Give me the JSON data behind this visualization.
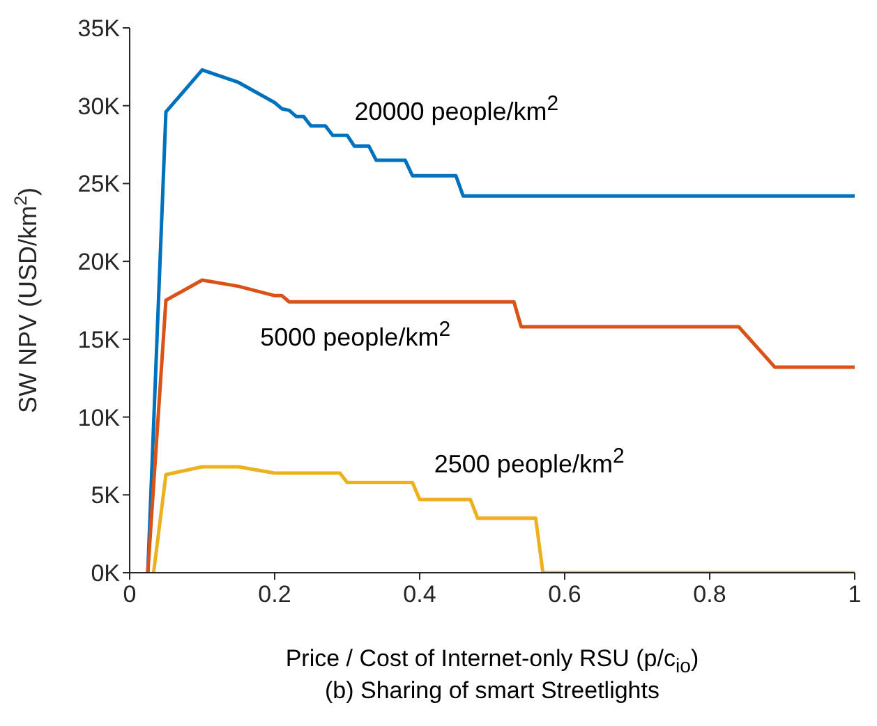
{
  "chart_data": {
    "type": "line",
    "xlabel": "Price / Cost of Internet-only RSU (p/c$_{io}$)",
    "ylabel": "SW NPV (USD/km$^{2}$)",
    "annotations": [
      "(b) Sharing of smart Streetlights"
    ],
    "series": [
      {
        "name": "20000 people/km$^{2}$",
        "color": "#0072bd",
        "x": [
          0.025,
          0.05,
          0.1,
          0.15,
          0.2,
          0.21,
          0.22,
          0.23,
          0.24,
          0.25,
          0.27,
          0.28,
          0.3,
          0.31,
          0.33,
          0.34,
          0.38,
          0.39,
          0.45,
          0.46,
          1
        ],
        "values": [
          0,
          29600,
          32300,
          31500,
          30200,
          29800,
          29700,
          29300,
          29300,
          28700,
          28700,
          28100,
          28100,
          27400,
          27400,
          26500,
          26500,
          25500,
          25500,
          24200,
          24200
        ]
      },
      {
        "name": "5000 people/km$^{2}$",
        "color": "#d95319",
        "x": [
          0.025,
          0.05,
          0.1,
          0.15,
          0.2,
          0.21,
          0.22,
          0.53,
          0.54,
          0.84,
          0.89,
          1
        ],
        "values": [
          0,
          17500,
          18800,
          18400,
          17800,
          17800,
          17400,
          17400,
          15800,
          15800,
          13200,
          13200
        ]
      },
      {
        "name": "2500 people/km$^{2}$",
        "color": "#edb120",
        "x": [
          0.033,
          0.05,
          0.1,
          0.15,
          0.2,
          0.29,
          0.3,
          0.39,
          0.4,
          0.47,
          0.48,
          0.56,
          0.57,
          1
        ],
        "values": [
          0,
          6300,
          6800,
          6800,
          6400,
          6400,
          5800,
          5800,
          4700,
          4700,
          3500,
          3500,
          0,
          0
        ]
      }
    ],
    "xlim": [
      0,
      1
    ],
    "xticks": [
      0,
      0.2,
      0.4,
      0.6,
      0.8,
      1
    ],
    "ylim": [
      0,
      35000
    ],
    "yticks": [
      {
        "value": 0,
        "label": "0K"
      },
      {
        "value": 5000,
        "label": "5K"
      },
      {
        "value": 10000,
        "label": "10K"
      },
      {
        "value": 15000,
        "label": "15K"
      },
      {
        "value": 20000,
        "label": "20K"
      },
      {
        "value": 25000,
        "label": "25K"
      },
      {
        "value": 30000,
        "label": "30K"
      },
      {
        "value": 35000,
        "label": "35K"
      }
    ],
    "grid": false,
    "legend": false,
    "marker": "none",
    "line_style": "solid"
  }
}
